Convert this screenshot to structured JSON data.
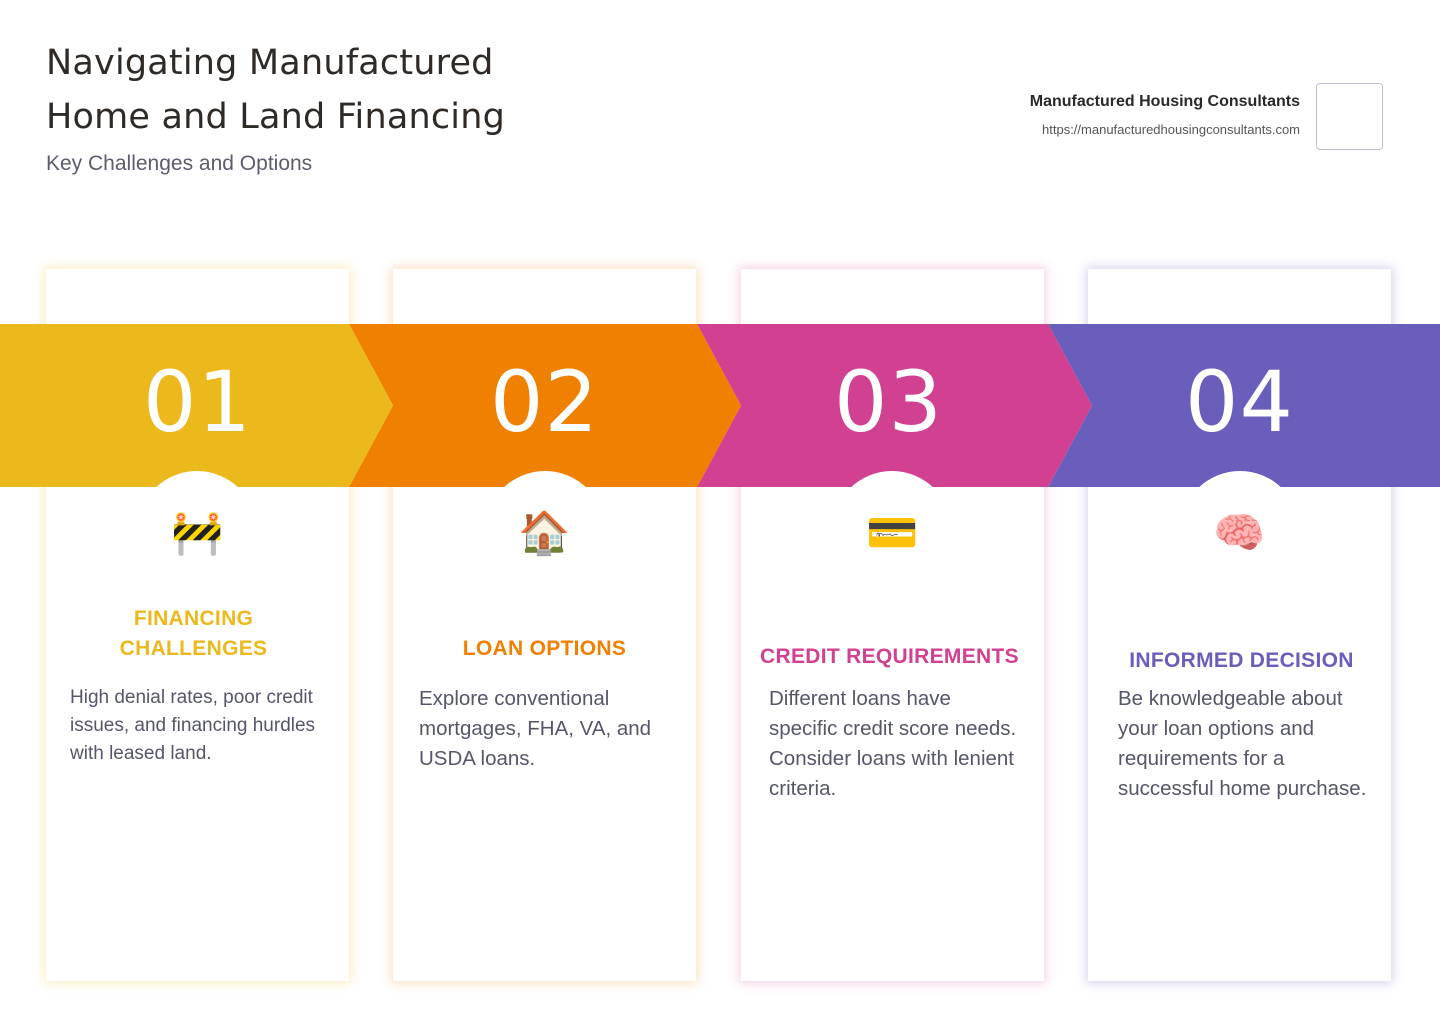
{
  "header": {
    "title_line1": "Navigating Manufactured",
    "title_line2": "Home and Land Financing",
    "subtitle": "Key Challenges and Options",
    "brand_name": "Manufactured Housing Consultants",
    "brand_url": "https://manufacturedhousingconsultants.com"
  },
  "colors": {
    "step1": "#EBB91C",
    "step2": "#F08000",
    "step3": "#D24092",
    "step4": "#6A5EBC"
  },
  "steps": [
    {
      "number": "01",
      "icon": "construction-barrier-icon",
      "icon_glyph": "🚧",
      "heading_line1": "FINANCING",
      "heading_line2": "CHALLENGES",
      "description": "High denial rates, poor credit issues, and financing hurdles with leased land."
    },
    {
      "number": "02",
      "icon": "house-icon",
      "icon_glyph": "🏠",
      "heading_line1": "LOAN OPTIONS",
      "description": "Explore conventional mortgages, FHA, VA, and USDA loans."
    },
    {
      "number": "03",
      "icon": "credit-card-icon",
      "icon_glyph": "💳",
      "heading_line1": "CREDIT REQUIREMENTS",
      "description": "Different loans have specific credit score needs. Consider loans with lenient criteria."
    },
    {
      "number": "04",
      "icon": "brain-icon",
      "icon_glyph": "🧠",
      "heading_line1": "INFORMED DECISION",
      "description": "Be knowledgeable about your loan options and requirements for a successful home purchase."
    }
  ]
}
